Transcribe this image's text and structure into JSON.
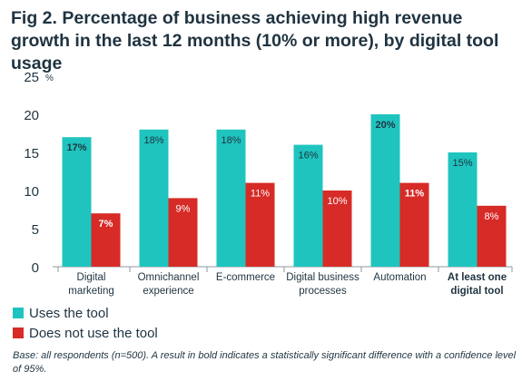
{
  "title": "Fig 2. Percentage of business achieving high revenue growth in the last 12 months (10% or more), by digital tool usage",
  "note": "Base: all respondents (n=500). A result in bold indicates a statistically significant difference with a confidence level of 95%.",
  "colors": {
    "uses": "#1fc4be",
    "not_uses": "#d72b27",
    "axis": "#8c9aa3",
    "text": "#1f3340"
  },
  "chart_data": {
    "type": "bar",
    "title": "Fig 2. Percentage of business achieving high revenue growth in the last 12 months (10% or more), by digital tool usage",
    "ylabel": "%",
    "ylim": [
      0,
      25
    ],
    "yticks": [
      "0",
      "5",
      "10",
      "15",
      "20",
      "25"
    ],
    "grid": false,
    "legend_position": "bottom-left",
    "categories": [
      {
        "lines": [
          "Digital",
          "marketing"
        ],
        "bold": false
      },
      {
        "lines": [
          "Omnichannel",
          "experience"
        ],
        "bold": false
      },
      {
        "lines": [
          "E-commerce"
        ],
        "bold": false
      },
      {
        "lines": [
          "Digital business",
          "processes"
        ],
        "bold": false
      },
      {
        "lines": [
          "Automation"
        ],
        "bold": false
      },
      {
        "lines": [
          "At least one",
          "digital tool"
        ],
        "bold": true
      }
    ],
    "series": [
      {
        "name": "Uses the tool",
        "values": [
          17,
          18,
          18,
          16,
          20,
          15
        ],
        "labels": [
          "17%",
          "18%",
          "18%",
          "16%",
          "20%",
          "15%"
        ],
        "bold": [
          true,
          false,
          false,
          false,
          true,
          false
        ]
      },
      {
        "name": "Does not use the tool",
        "values": [
          7,
          9,
          11,
          10,
          11,
          8
        ],
        "labels": [
          "7%",
          "9%",
          "11%",
          "10%",
          "11%",
          "8%"
        ],
        "bold": [
          true,
          false,
          false,
          false,
          true,
          false
        ]
      }
    ]
  }
}
